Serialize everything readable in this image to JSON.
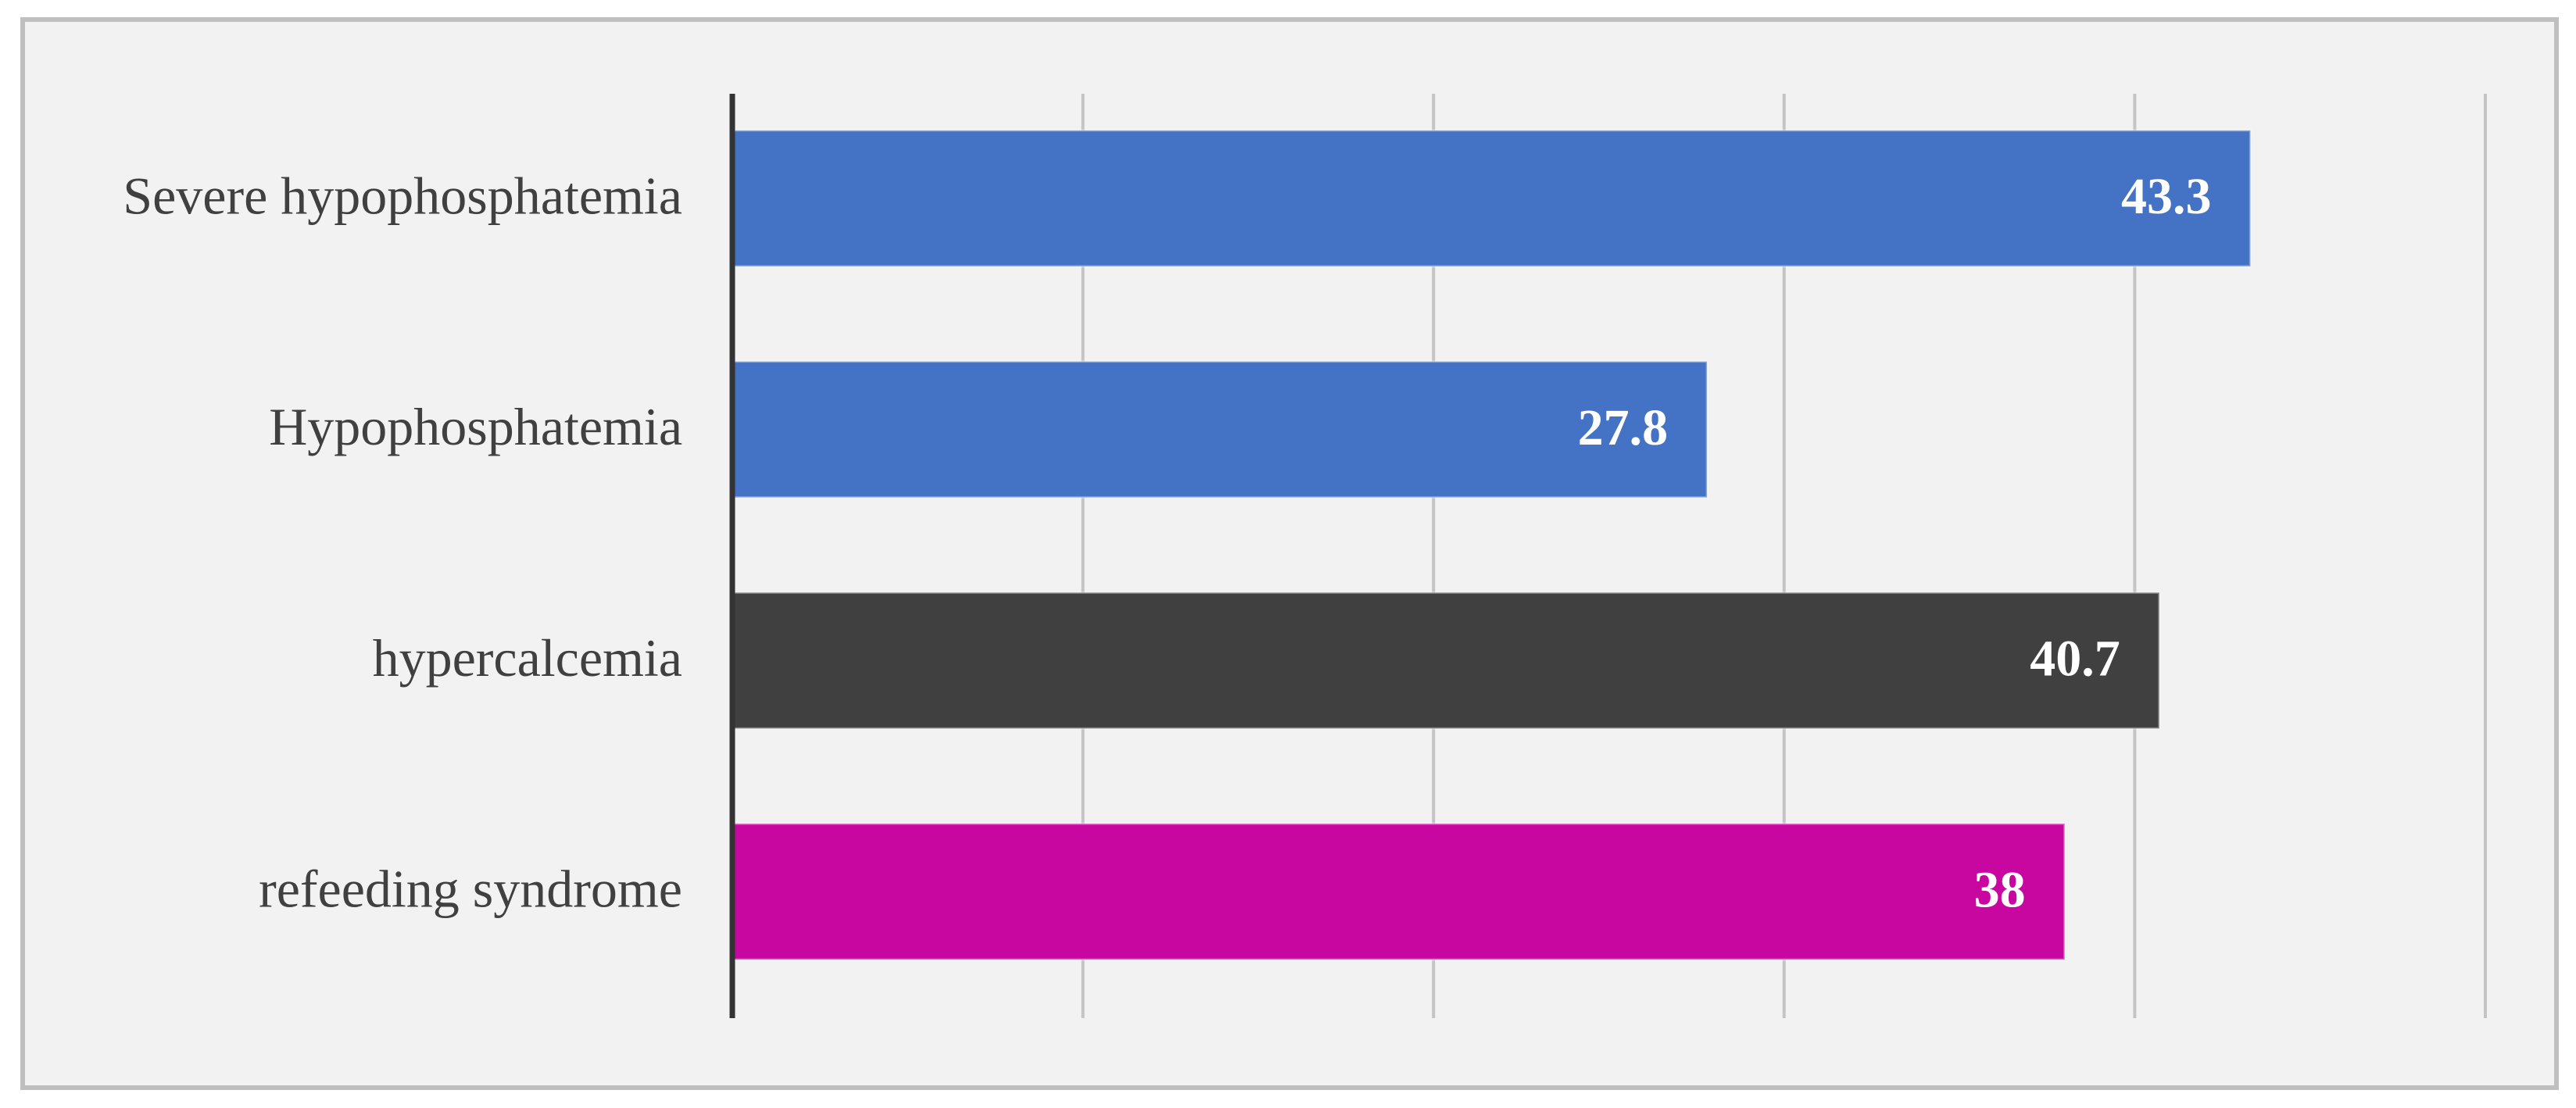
{
  "chart_data": {
    "type": "bar",
    "orientation": "horizontal",
    "categories": [
      "Severe hypophosphatemia",
      "Hypophosphatemia",
      "hypercalcemia",
      "refeeding syndrome"
    ],
    "values": [
      43.3,
      27.8,
      40.7,
      38
    ],
    "colors": [
      "#4472c4",
      "#4472c4",
      "#404040",
      "#c7079f"
    ],
    "xlim": [
      0,
      50
    ],
    "xticks": [
      0,
      10,
      20,
      30,
      40,
      50
    ],
    "grid": true
  }
}
